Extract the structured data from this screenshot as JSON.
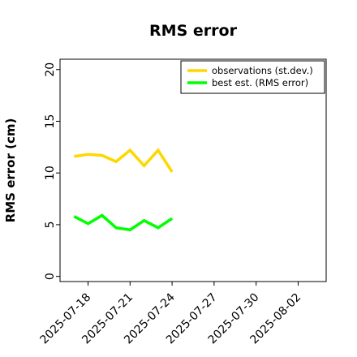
{
  "chart_data": {
    "type": "line",
    "title": "RMS error",
    "xlabel": "",
    "ylabel": "RMS error (cm)",
    "xlim": [
      "2025-07-16",
      "2025-08-04"
    ],
    "ylim": [
      -0.5,
      21
    ],
    "yticks": [
      0,
      5,
      10,
      15,
      20
    ],
    "xticks": [
      "2025-07-18",
      "2025-07-21",
      "2025-07-24",
      "2025-07-27",
      "2025-07-30",
      "2025-08-02"
    ],
    "highlighted_tick": "2025-07-24",
    "highlight_color": "#228B22",
    "grid": false,
    "legend": "top-right",
    "x": [
      "2025-07-17",
      "2025-07-18",
      "2025-07-19",
      "2025-07-20",
      "2025-07-21",
      "2025-07-22",
      "2025-07-23",
      "2025-07-24"
    ],
    "series": [
      {
        "name": "observations (st.dev.)",
        "color": "#FFD700",
        "values": [
          11.6,
          11.8,
          11.7,
          11.1,
          12.2,
          10.7,
          12.2,
          10.1
        ]
      },
      {
        "name": "best est. (RMS error)",
        "color": "#00FF00",
        "values": [
          5.8,
          5.1,
          5.9,
          4.7,
          4.5,
          5.4,
          4.7,
          5.6
        ]
      }
    ]
  }
}
